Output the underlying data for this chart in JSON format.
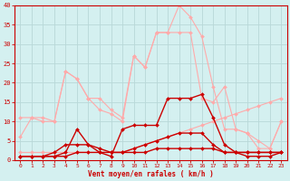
{
  "xlabel": "Vent moyen/en rafales ( km/h )",
  "background_color": "#d4f0f0",
  "grid_color": "#b8d8d8",
  "x": [
    0,
    1,
    2,
    3,
    4,
    5,
    6,
    7,
    8,
    9,
    10,
    11,
    12,
    13,
    14,
    15,
    16,
    17,
    18,
    19,
    20,
    21,
    22,
    23
  ],
  "line_pink1": [
    2,
    2,
    2,
    2,
    2,
    2,
    2,
    2,
    2,
    2,
    3,
    4,
    5,
    6,
    7,
    8,
    9,
    10,
    11,
    12,
    13,
    14,
    15,
    16
  ],
  "line_pink2": [
    11,
    11,
    10,
    10,
    23,
    21,
    16,
    16,
    13,
    11,
    27,
    24,
    33,
    33,
    40,
    37,
    32,
    19,
    8,
    8,
    7,
    5,
    3,
    10
  ],
  "line_pink3": [
    6,
    11,
    11,
    10,
    23,
    21,
    16,
    13,
    12,
    10,
    27,
    24,
    33,
    33,
    33,
    33,
    16,
    15,
    19,
    8,
    7,
    3,
    3,
    10
  ],
  "line_red1": [
    1,
    1,
    1,
    1,
    2,
    8,
    4,
    2,
    1,
    8,
    9,
    9,
    9,
    16,
    16,
    16,
    17,
    11,
    4,
    2,
    2,
    2,
    2,
    2
  ],
  "line_red2": [
    1,
    1,
    1,
    2,
    4,
    4,
    4,
    3,
    2,
    2,
    3,
    4,
    5,
    6,
    7,
    7,
    7,
    4,
    2,
    2,
    2,
    2,
    2,
    2
  ],
  "line_red3": [
    1,
    1,
    1,
    1,
    1,
    2,
    2,
    2,
    2,
    2,
    2,
    2,
    3,
    3,
    3,
    3,
    3,
    3,
    2,
    2,
    1,
    1,
    1,
    2
  ],
  "line_pink1_color": "#ffaaaa",
  "line_pink2_color": "#ffaaaa",
  "line_pink3_color": "#ffaaaa",
  "line_red1_color": "#cc0000",
  "line_red2_color": "#cc0000",
  "line_red3_color": "#cc0000",
  "ylim": [
    0,
    40
  ],
  "xlim": [
    -0.5,
    23.5
  ],
  "yticks": [
    0,
    5,
    10,
    15,
    20,
    25,
    30,
    35,
    40
  ],
  "xticks": [
    0,
    1,
    2,
    3,
    4,
    5,
    6,
    7,
    8,
    9,
    10,
    11,
    12,
    13,
    14,
    15,
    16,
    17,
    18,
    19,
    20,
    21,
    22,
    23
  ]
}
